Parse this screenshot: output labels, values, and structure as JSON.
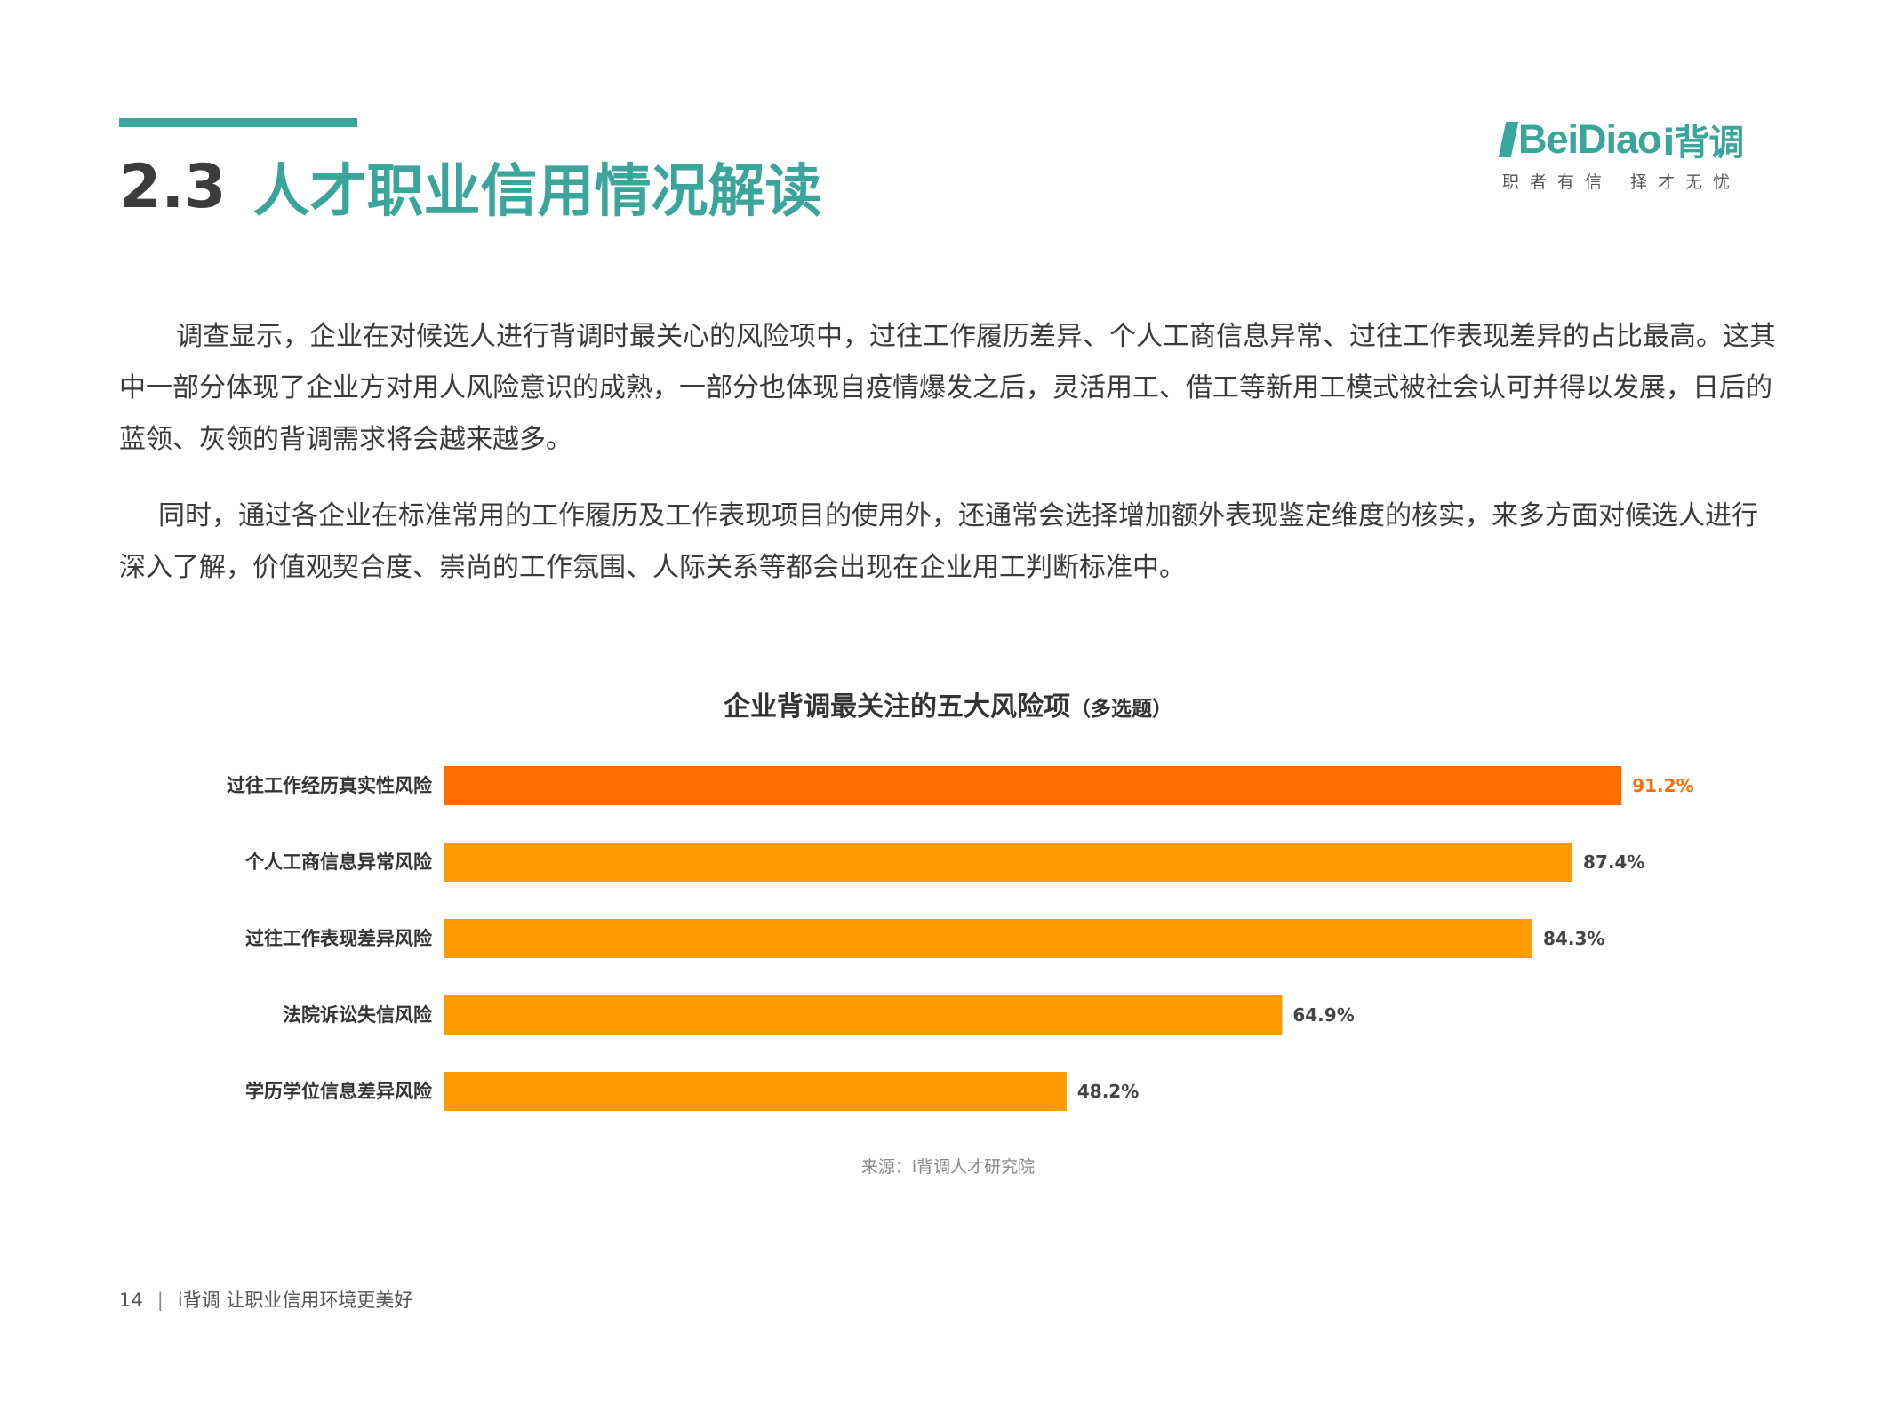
{
  "header": {
    "section_number": "2.3",
    "section_title": "人才职业信用情况解读",
    "accent_color": "#3aa59a"
  },
  "logo": {
    "brand_latin": "BeiDiao",
    "brand_cn": "i背调",
    "tagline_left": "职者有信",
    "tagline_right": "择才无忧",
    "color": "#3aa59a"
  },
  "body": {
    "paragraph_1": "调查显示，企业在对候选人进行背调时最关心的风险项中，过往工作履历差异、个人工商信息异常、过往工作表现差异的占比最高。这其中一部分体现了企业方对用人风险意识的成熟，一部分也体现自疫情爆发之后，灵活用工、借工等新用工模式被社会认可并得以发展，日后的蓝领、灰领的背调需求将会越来越多。",
    "paragraph_2": "同时，通过各企业在标准常用的工作履历及工作表现项目的使用外，还通常会选择增加额外表现鉴定维度的核实，来多方面对候选人进行深入了解，价值观契合度、崇尚的工作氛围、人际关系等都会出现在企业用工判断标准中。"
  },
  "chart_data": {
    "type": "bar",
    "orientation": "horizontal",
    "title": "企业背调最关注的五大风险项",
    "subtitle": "（多选题）",
    "categories": [
      "过往工作经历真实性风险",
      "个人工商信息异常风险",
      "过往工作表现差异风险",
      "法院诉讼失信风险",
      "学历学位信息差异风险"
    ],
    "values": [
      91.2,
      87.4,
      84.3,
      64.9,
      48.2
    ],
    "value_labels": [
      "91.2%",
      "87.4%",
      "84.3%",
      "64.9%",
      "48.2%"
    ],
    "unit": "%",
    "xlim": [
      0,
      100
    ],
    "colors": {
      "highlight_bar": "#ff6d00",
      "bar": "#ff9a00",
      "highlight_label": "#ff6d00",
      "label": "#444444"
    },
    "highlight_index": 0,
    "grid": false,
    "legend": "none"
  },
  "source": "来源：i背调人才研究院",
  "footer": {
    "page_number": "14",
    "slogan": "i背调  让职业信用环境更美好"
  }
}
